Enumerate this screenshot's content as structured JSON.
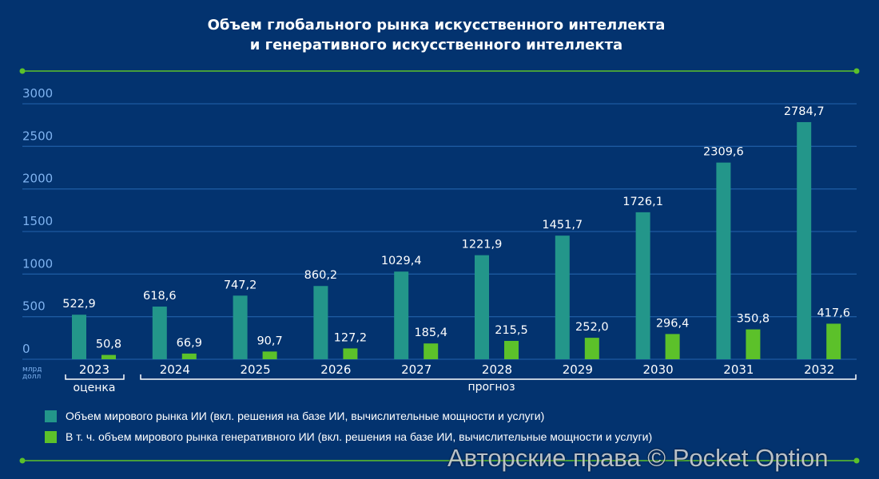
{
  "title_line1": "Объем глобального рынка искусственного интеллекта",
  "title_line2": "и генеративного искусственного интеллекта",
  "colors": {
    "background": "#03336f",
    "teal": "#23968a",
    "green": "#5cc12a",
    "grid": "#1d5aa0",
    "axis_text": "#7fb3f0"
  },
  "chart_data": {
    "type": "bar",
    "categories": [
      "2023",
      "2024",
      "2025",
      "2026",
      "2027",
      "2028",
      "2029",
      "2030",
      "2031",
      "2032"
    ],
    "series": [
      {
        "name": "Объем мирового рынка ИИ (вкл. решения на базе ИИ, вычислительные мощности и услуги)",
        "values": [
          522.9,
          618.6,
          747.2,
          860.2,
          1029.4,
          1221.9,
          1451.7,
          1726.1,
          2309.6,
          2784.7
        ],
        "labels": [
          "522,9",
          "618,6",
          "747,2",
          "860,2",
          "1029,4",
          "1221,9",
          "1451,7",
          "1726,1",
          "2309,6",
          "2784,7"
        ],
        "color": "#23968a"
      },
      {
        "name": "В т. ч. объем мирового рынка генеративного ИИ (вкл. решения на базе ИИ, вычислительные мощности и услуги)",
        "values": [
          50.8,
          66.9,
          90.7,
          127.2,
          185.4,
          215.5,
          252.0,
          296.4,
          350.8,
          417.6
        ],
        "labels": [
          "50,8",
          "66,9",
          "90,7",
          "127,2",
          "185,4",
          "215,5",
          "252,0",
          "296,4",
          "350,8",
          "417,6"
        ],
        "color": "#5cc12a"
      }
    ],
    "yticks": [
      0,
      500,
      1000,
      1500,
      2000,
      2500,
      3000
    ],
    "ylim": [
      0,
      3000
    ],
    "ylabel": "млрд долл",
    "grid": true,
    "legend": "bottom-left",
    "annotations": {
      "estimate": "оценка",
      "forecast": "прогноз"
    }
  },
  "watermark": "Авторские права © Pocket Option"
}
